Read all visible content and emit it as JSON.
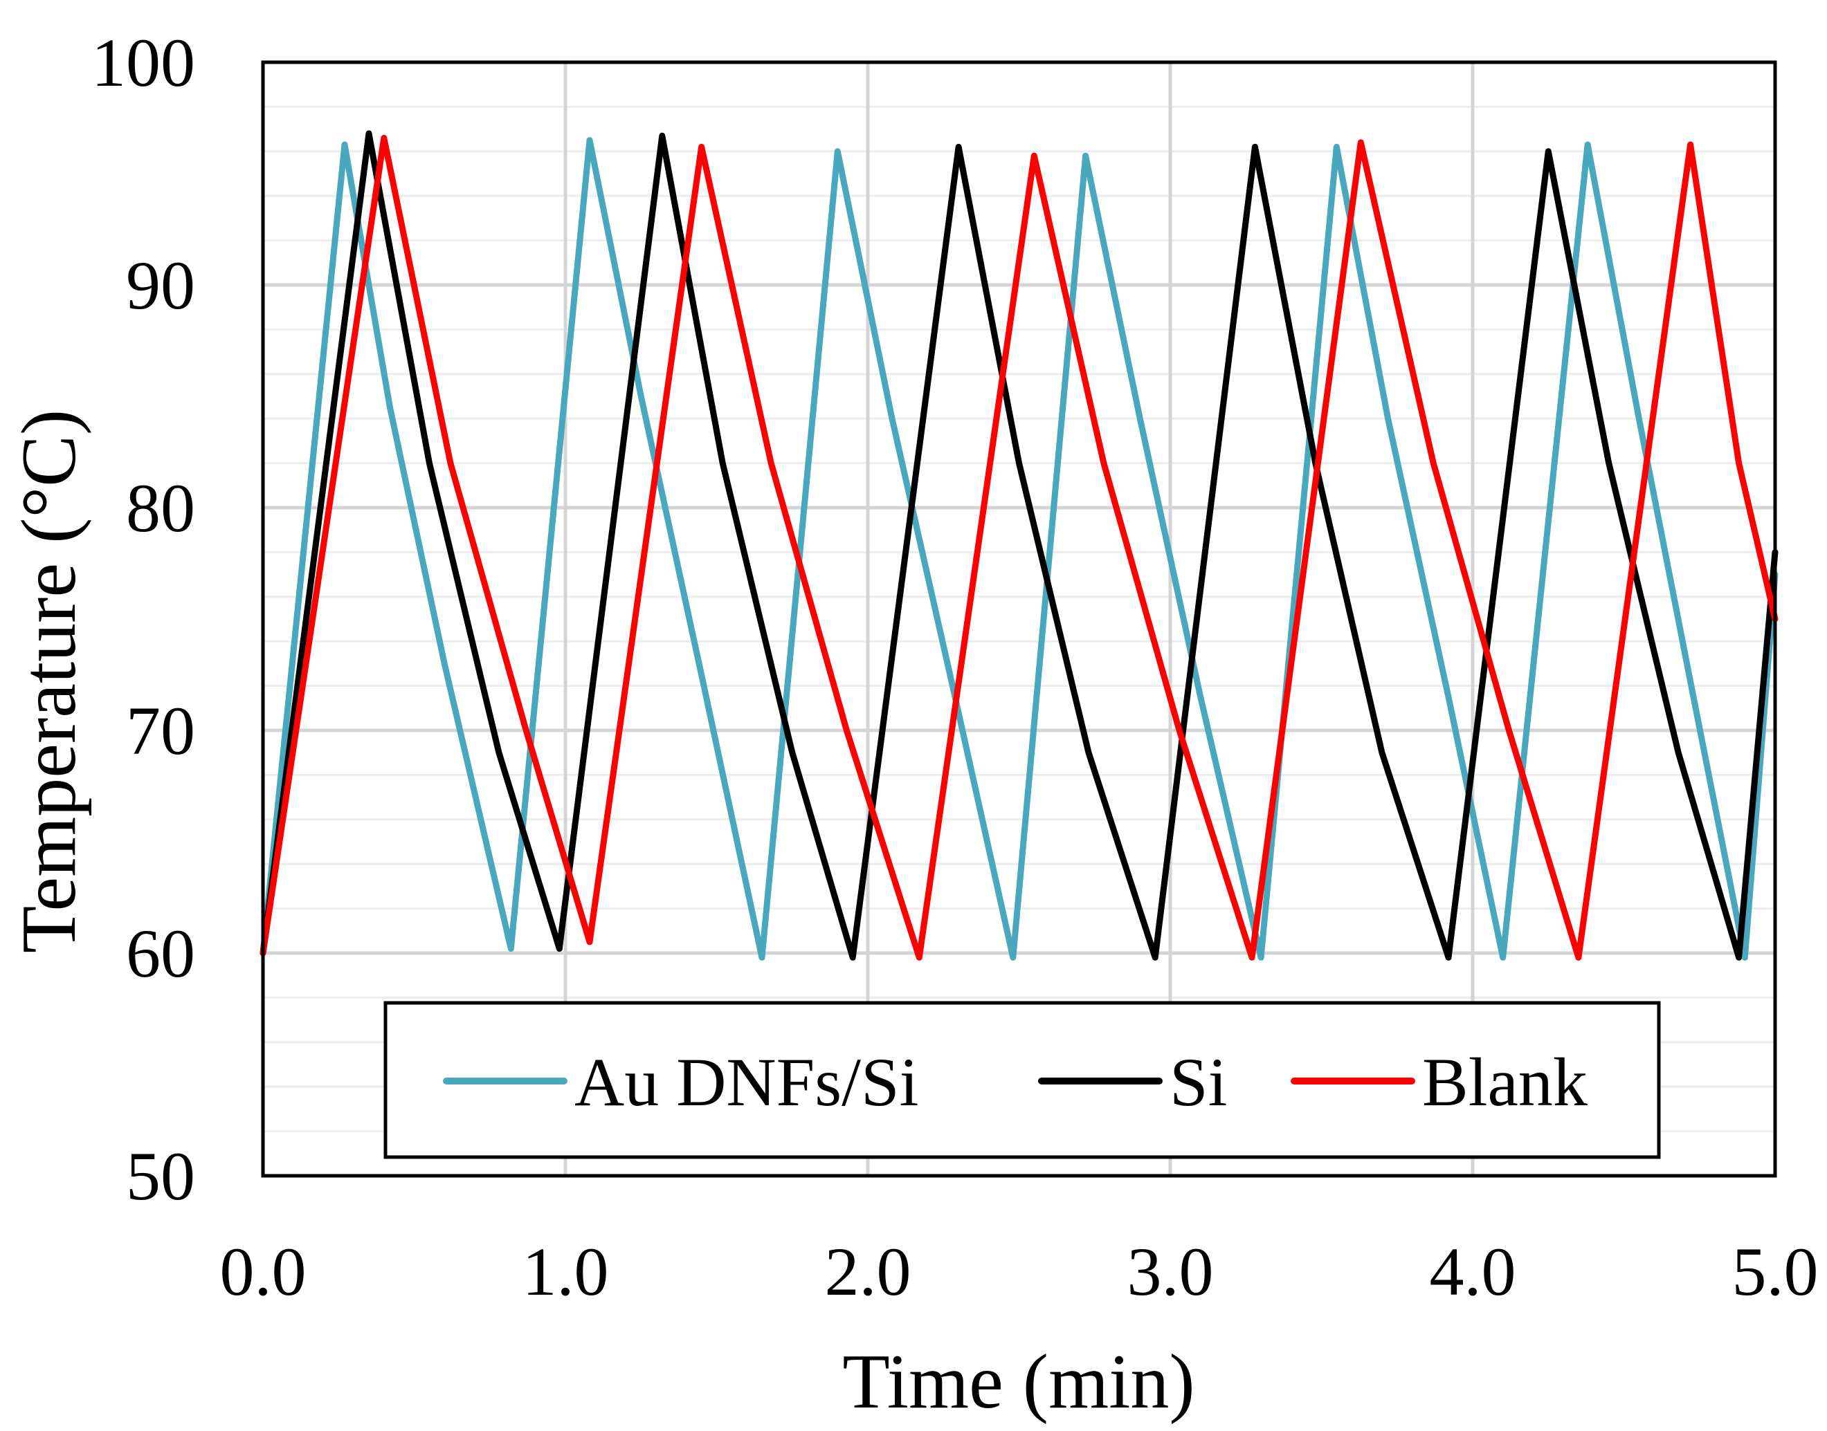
{
  "chart_data": {
    "type": "line",
    "title": "",
    "xlabel": "Time (min)",
    "ylabel": "Temperature  (°C)",
    "xlim": [
      0,
      5
    ],
    "ylim": [
      50,
      100
    ],
    "x_ticks": [
      0,
      1,
      2,
      3,
      4,
      5
    ],
    "x_tick_labels": [
      "0.0",
      "1.0",
      "2.0",
      "3.0",
      "4.0",
      "5.0"
    ],
    "y_ticks": [
      50,
      60,
      70,
      80,
      90,
      100
    ],
    "y_tick_labels": [
      "50",
      "60",
      "70",
      "80",
      "90",
      "100"
    ],
    "grid": true,
    "legend_position": "bottom-center",
    "series": [
      {
        "name": "Au DNFs/Si",
        "color": "#4aa8be",
        "points": [
          [
            0.0,
            60.0
          ],
          [
            0.27,
            96.3
          ],
          [
            0.42,
            84.5
          ],
          [
            0.6,
            73.0
          ],
          [
            0.82,
            60.2
          ],
          [
            1.08,
            96.5
          ],
          [
            1.25,
            85.0
          ],
          [
            1.45,
            72.5
          ],
          [
            1.65,
            59.8
          ],
          [
            1.9,
            96.0
          ],
          [
            2.08,
            84.0
          ],
          [
            2.28,
            72.0
          ],
          [
            2.48,
            59.8
          ],
          [
            2.72,
            95.8
          ],
          [
            2.9,
            84.0
          ],
          [
            3.1,
            71.5
          ],
          [
            3.3,
            59.8
          ],
          [
            3.55,
            96.2
          ],
          [
            3.72,
            84.0
          ],
          [
            3.92,
            71.5
          ],
          [
            4.1,
            59.8
          ],
          [
            4.38,
            96.3
          ],
          [
            4.55,
            84.0
          ],
          [
            4.73,
            71.5
          ],
          [
            4.9,
            59.8
          ],
          [
            5.0,
            77.0
          ]
        ]
      },
      {
        "name": "Si",
        "color": "#000000",
        "points": [
          [
            0.0,
            60.0
          ],
          [
            0.35,
            96.8
          ],
          [
            0.55,
            82.0
          ],
          [
            0.78,
            69.0
          ],
          [
            0.98,
            60.2
          ],
          [
            1.32,
            96.7
          ],
          [
            1.52,
            82.0
          ],
          [
            1.75,
            69.0
          ],
          [
            1.95,
            59.8
          ],
          [
            2.3,
            96.2
          ],
          [
            2.5,
            82.0
          ],
          [
            2.73,
            69.0
          ],
          [
            2.95,
            59.8
          ],
          [
            3.28,
            96.2
          ],
          [
            3.48,
            82.0
          ],
          [
            3.7,
            69.0
          ],
          [
            3.92,
            59.8
          ],
          [
            4.25,
            96.0
          ],
          [
            4.45,
            82.0
          ],
          [
            4.68,
            69.0
          ],
          [
            4.88,
            59.8
          ],
          [
            5.0,
            78.0
          ]
        ]
      },
      {
        "name": "Blank",
        "color": "#ff0000",
        "points": [
          [
            0.0,
            60.0
          ],
          [
            0.4,
            96.6
          ],
          [
            0.62,
            82.0
          ],
          [
            0.87,
            70.0
          ],
          [
            1.08,
            60.5
          ],
          [
            1.45,
            96.2
          ],
          [
            1.68,
            82.0
          ],
          [
            1.93,
            70.0
          ],
          [
            2.17,
            59.8
          ],
          [
            2.55,
            95.8
          ],
          [
            2.78,
            82.0
          ],
          [
            3.03,
            70.0
          ],
          [
            3.27,
            59.8
          ],
          [
            3.63,
            96.4
          ],
          [
            3.87,
            82.0
          ],
          [
            4.12,
            70.0
          ],
          [
            4.35,
            59.8
          ],
          [
            4.72,
            96.3
          ],
          [
            4.88,
            82.0
          ],
          [
            5.0,
            75.0
          ]
        ]
      }
    ]
  }
}
